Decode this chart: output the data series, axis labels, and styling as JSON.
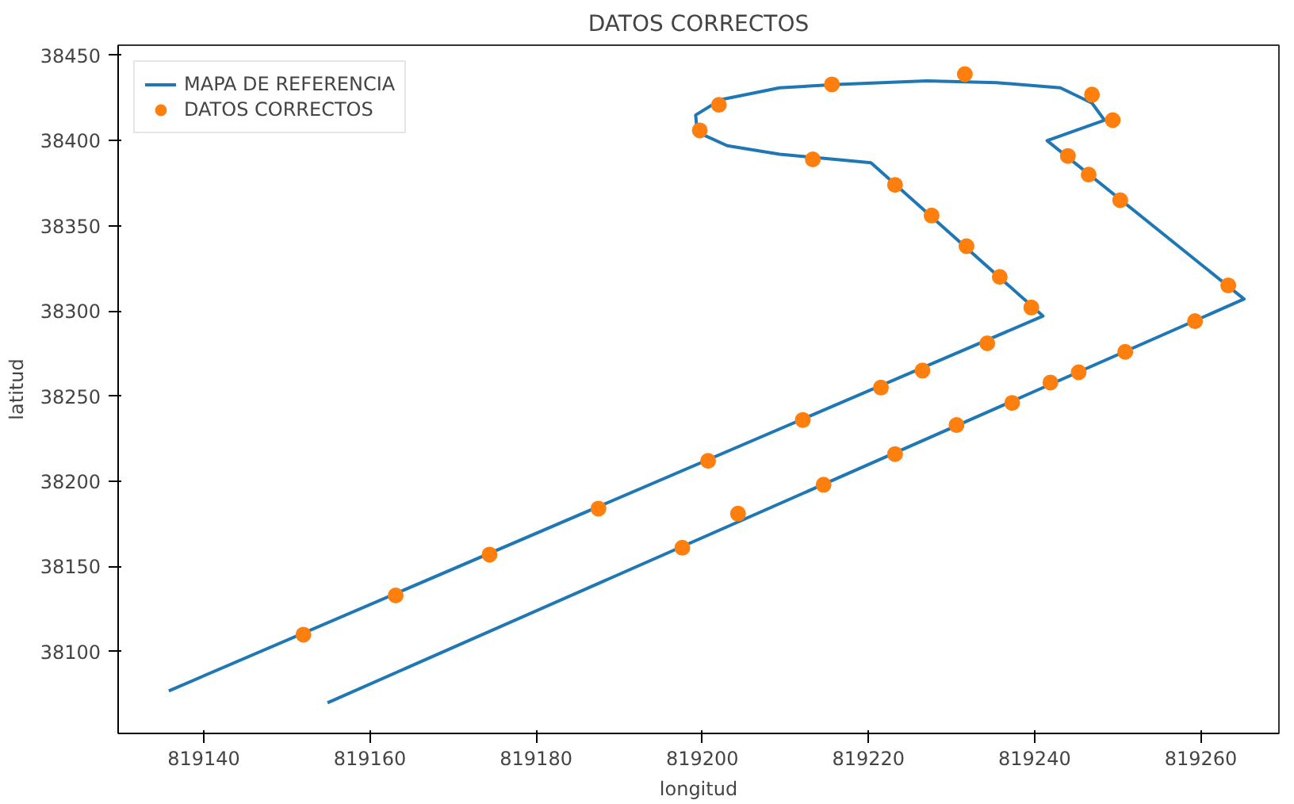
{
  "chart_data": {
    "type": "line",
    "title": "DATOS CORRECTOS",
    "xlabel": "longitud",
    "ylabel": "latitud",
    "xlim": [
      819129.7,
      819269.4
    ],
    "ylim": [
      38052,
      38456
    ],
    "xticks": [
      819140,
      819160,
      819180,
      819200,
      819220,
      819240,
      819260
    ],
    "yticks": [
      38100,
      38150,
      38200,
      38250,
      38300,
      38350,
      38400,
      38450
    ],
    "grid": false,
    "legend": "top left",
    "series": [
      {
        "name": "MAPA DE REFERENCIA",
        "color": "#1f77b4",
        "marker": "none",
        "line_style": "solid",
        "x": [
          819135.8,
          819241.0,
          819220.3,
          819209.3,
          819203.0,
          819199.4,
          819199.2,
          819202.2,
          819209.3,
          819216.3,
          819227.0,
          819235.4,
          819243.1,
          819246.9,
          819248.4,
          819241.5,
          819265.2,
          819154.9
        ],
        "values": [
          38077,
          38297,
          38387,
          38392,
          38397,
          38405,
          38415,
          38424,
          38431,
          38433,
          38435,
          38434,
          38431,
          38422,
          38412,
          38400,
          38307,
          38070
        ]
      },
      {
        "name": "DATOS CORRECTOS",
        "type": "scatter",
        "color": "#ff7f0e",
        "marker": "circle",
        "x": [
          819152.0,
          819163.1,
          819174.4,
          819187.5,
          819200.7,
          819212.1,
          819221.5,
          819226.5,
          819234.3,
          819239.6,
          819235.8,
          819231.8,
          819227.6,
          819223.2,
          819213.3,
          819199.7,
          819202.0,
          819215.6,
          819231.6,
          819246.9,
          819249.4,
          819244.0,
          819246.5,
          819250.3,
          819263.3,
          819259.3,
          819250.9,
          819245.3,
          819241.9,
          819237.3,
          819230.6,
          819223.2,
          819214.6,
          819204.3,
          819197.6
        ],
        "values": [
          38110,
          38133,
          38157,
          38184,
          38212,
          38236,
          38255,
          38265,
          38281,
          38302,
          38320,
          38338,
          38356,
          38374,
          38389,
          38406,
          38421,
          38433,
          38439,
          38427,
          38412,
          38391,
          38380,
          38365,
          38315,
          38294,
          38276,
          38264,
          38258,
          38246,
          38233,
          38216,
          38198,
          38181,
          38161
        ]
      }
    ]
  }
}
